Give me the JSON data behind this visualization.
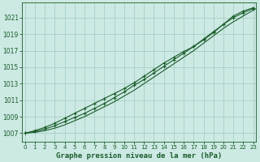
{
  "xlabel": "Graphe pression niveau de la mer (hPa)",
  "x_ticks": [
    0,
    1,
    2,
    3,
    4,
    5,
    6,
    7,
    8,
    9,
    10,
    11,
    12,
    13,
    14,
    15,
    16,
    17,
    18,
    19,
    20,
    21,
    22,
    23
  ],
  "y_ticks": [
    1007,
    1009,
    1011,
    1013,
    1015,
    1017,
    1019,
    1021
  ],
  "ylim": [
    1006.0,
    1022.8
  ],
  "xlim": [
    -0.3,
    23.3
  ],
  "bg_color": "#cce9e3",
  "grid_color": "#a8cfc8",
  "line_color": "#1a5c2a",
  "series1": [
    1007.0,
    1007.3,
    1007.7,
    1008.2,
    1008.8,
    1009.4,
    1010.0,
    1010.6,
    1011.2,
    1011.8,
    1012.4,
    1013.1,
    1013.9,
    1014.7,
    1015.5,
    1016.2,
    1016.9,
    1017.5,
    1018.3,
    1019.2,
    1020.2,
    1021.2,
    1021.8,
    1022.2
  ],
  "series2": [
    1007.0,
    1007.2,
    1007.5,
    1007.9,
    1008.4,
    1008.9,
    1009.4,
    1010.0,
    1010.6,
    1011.3,
    1012.0,
    1012.8,
    1013.5,
    1014.3,
    1015.1,
    1015.9,
    1016.7,
    1017.5,
    1018.4,
    1019.3,
    1020.2,
    1021.0,
    1021.6,
    1022.1
  ],
  "series3": [
    1007.0,
    1007.1,
    1007.3,
    1007.6,
    1008.0,
    1008.5,
    1009.0,
    1009.6,
    1010.2,
    1010.8,
    1011.5,
    1012.2,
    1013.0,
    1013.8,
    1014.6,
    1015.4,
    1016.2,
    1017.0,
    1017.9,
    1018.8,
    1019.7,
    1020.5,
    1021.2,
    1021.9
  ]
}
